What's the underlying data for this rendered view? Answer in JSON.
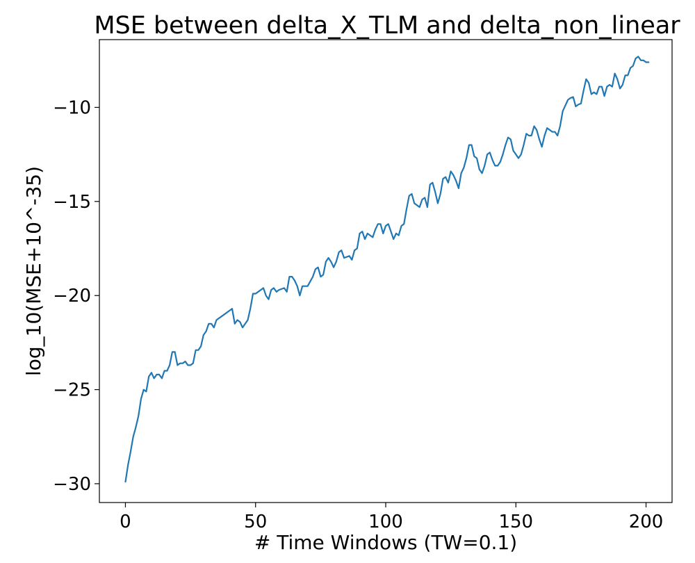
{
  "chart_data": {
    "type": "line",
    "title": "MSE between delta_X_TLM and delta_non_linear",
    "xlabel": "# Time Windows (TW=0.1)",
    "ylabel": "log_10(MSE+10^-35)",
    "xlim": [
      -10,
      210
    ],
    "ylim": [
      -31,
      -6.4
    ],
    "xticks": [
      0,
      50,
      100,
      150,
      200
    ],
    "xtick_labels": [
      "0",
      "50",
      "100",
      "150",
      "200"
    ],
    "yticks": [
      -30,
      -25,
      -20,
      -15,
      -10
    ],
    "ytick_labels": [
      "−30",
      "−25",
      "−20",
      "−15",
      "−10"
    ],
    "grid": false,
    "line_color": "#1f77b4",
    "series": [
      {
        "name": "",
        "keypoints": [
          [
            0,
            -29.9
          ],
          [
            1,
            -29.0
          ],
          [
            2,
            -28.3
          ],
          [
            3,
            -27.5
          ],
          [
            4,
            -27.0
          ],
          [
            5,
            -26.4
          ],
          [
            6,
            -25.5
          ],
          [
            7,
            -25.0
          ],
          [
            8,
            -25.1
          ],
          [
            9,
            -24.3
          ],
          [
            10,
            -24.1
          ],
          [
            11,
            -24.4
          ],
          [
            12,
            -24.2
          ],
          [
            13,
            -24.2
          ],
          [
            14,
            -24.4
          ],
          [
            15,
            -24.0
          ],
          [
            16,
            -24.0
          ],
          [
            17,
            -23.7
          ],
          [
            18,
            -23.0
          ],
          [
            19,
            -23.0
          ],
          [
            20,
            -23.7
          ],
          [
            21,
            -23.6
          ],
          [
            22,
            -23.6
          ],
          [
            23,
            -23.5
          ],
          [
            24,
            -23.7
          ],
          [
            25,
            -23.7
          ],
          [
            26,
            -23.6
          ],
          [
            27,
            -22.9
          ],
          [
            28,
            -22.9
          ],
          [
            29,
            -22.7
          ],
          [
            30,
            -22.1
          ],
          [
            31,
            -21.9
          ],
          [
            32,
            -21.5
          ],
          [
            33,
            -21.5
          ],
          [
            34,
            -21.7
          ],
          [
            35,
            -21.3
          ],
          [
            38,
            -21.0
          ],
          [
            41,
            -20.7
          ],
          [
            42,
            -21.5
          ],
          [
            43,
            -21.3
          ],
          [
            44,
            -21.4
          ],
          [
            45,
            -21.7
          ],
          [
            47,
            -21.3
          ],
          [
            48,
            -20.7
          ],
          [
            49,
            -19.9
          ],
          [
            50,
            -19.9
          ],
          [
            51,
            -19.8
          ],
          [
            53,
            -19.6
          ],
          [
            54,
            -20.0
          ],
          [
            55,
            -20.2
          ],
          [
            56,
            -19.7
          ],
          [
            57,
            -19.6
          ],
          [
            58,
            -19.8
          ],
          [
            59,
            -19.7
          ],
          [
            61,
            -19.6
          ],
          [
            62,
            -19.8
          ],
          [
            63,
            -19.0
          ],
          [
            64,
            -19.0
          ],
          [
            65,
            -19.2
          ],
          [
            66,
            -19.5
          ],
          [
            67,
            -20.0
          ],
          [
            68,
            -19.5
          ],
          [
            70,
            -19.5
          ],
          [
            72,
            -19.0
          ],
          [
            73,
            -18.6
          ],
          [
            74,
            -18.5
          ],
          [
            75,
            -19.0
          ],
          [
            76,
            -18.9
          ],
          [
            77,
            -18.2
          ],
          [
            78,
            -18.0
          ],
          [
            79,
            -18.2
          ],
          [
            80,
            -18.5
          ],
          [
            81,
            -18.2
          ],
          [
            82,
            -17.7
          ],
          [
            83,
            -17.6
          ],
          [
            84,
            -18.0
          ],
          [
            86,
            -17.9
          ],
          [
            87,
            -18.1
          ],
          [
            88,
            -17.6
          ],
          [
            89,
            -17.5
          ],
          [
            90,
            -16.7
          ],
          [
            91,
            -16.6
          ],
          [
            92,
            -17.0
          ],
          [
            93,
            -16.7
          ],
          [
            94,
            -16.8
          ],
          [
            95,
            -16.9
          ],
          [
            96,
            -16.5
          ],
          [
            97,
            -16.2
          ],
          [
            98,
            -16.2
          ],
          [
            99,
            -16.7
          ],
          [
            100,
            -16.3
          ],
          [
            101,
            -16.2
          ],
          [
            102,
            -16.6
          ],
          [
            103,
            -17.0
          ],
          [
            104,
            -16.7
          ],
          [
            105,
            -16.8
          ],
          [
            106,
            -16.3
          ],
          [
            107,
            -16.2
          ],
          [
            108,
            -15.4
          ],
          [
            109,
            -14.7
          ],
          [
            110,
            -14.6
          ],
          [
            111,
            -15.1
          ],
          [
            112,
            -15.2
          ],
          [
            113,
            -15.3
          ],
          [
            114,
            -14.9
          ],
          [
            115,
            -14.8
          ],
          [
            116,
            -15.3
          ],
          [
            117,
            -14.1
          ],
          [
            118,
            -14.0
          ],
          [
            119,
            -14.5
          ],
          [
            120,
            -15.1
          ],
          [
            121,
            -14.6
          ],
          [
            122,
            -13.8
          ],
          [
            123,
            -13.7
          ],
          [
            124,
            -14.0
          ],
          [
            125,
            -13.4
          ],
          [
            126,
            -13.6
          ],
          [
            127,
            -13.9
          ],
          [
            128,
            -14.3
          ],
          [
            129,
            -13.5
          ],
          [
            130,
            -13.2
          ],
          [
            131,
            -12.7
          ],
          [
            132,
            -12.0
          ],
          [
            133,
            -12.0
          ],
          [
            134,
            -12.6
          ],
          [
            135,
            -12.7
          ],
          [
            136,
            -13.3
          ],
          [
            137,
            -13.5
          ],
          [
            138,
            -13.1
          ],
          [
            139,
            -12.5
          ],
          [
            140,
            -12.4
          ],
          [
            141,
            -12.8
          ],
          [
            142,
            -13.1
          ],
          [
            143,
            -13.1
          ],
          [
            144,
            -12.9
          ],
          [
            145,
            -12.5
          ],
          [
            146,
            -12.0
          ],
          [
            147,
            -11.6
          ],
          [
            148,
            -11.7
          ],
          [
            149,
            -12.3
          ],
          [
            150,
            -12.5
          ],
          [
            151,
            -12.7
          ],
          [
            152,
            -12.5
          ],
          [
            153,
            -12.0
          ],
          [
            154,
            -11.4
          ],
          [
            155,
            -11.5
          ],
          [
            156,
            -11.5
          ],
          [
            157,
            -11.0
          ],
          [
            158,
            -11.2
          ],
          [
            159,
            -11.7
          ],
          [
            160,
            -12.1
          ],
          [
            161,
            -11.5
          ],
          [
            162,
            -11.1
          ],
          [
            163,
            -11.2
          ],
          [
            164,
            -11.3
          ],
          [
            165,
            -11.3
          ],
          [
            166,
            -11.5
          ],
          [
            167,
            -11.0
          ],
          [
            168,
            -10.2
          ],
          [
            169,
            -9.9
          ],
          [
            170,
            -9.6
          ],
          [
            171,
            -9.5
          ],
          [
            172,
            -9.45
          ],
          [
            173,
            -9.95
          ],
          [
            174,
            -9.85
          ],
          [
            175,
            -9.8
          ],
          [
            176,
            -9.1
          ],
          [
            177,
            -8.5
          ],
          [
            178,
            -8.7
          ],
          [
            179,
            -9.3
          ],
          [
            180,
            -9.2
          ],
          [
            181,
            -9.3
          ],
          [
            182,
            -8.9
          ],
          [
            183,
            -8.9
          ],
          [
            184,
            -9.4
          ],
          [
            185,
            -8.9
          ],
          [
            186,
            -8.8
          ],
          [
            187,
            -8.9
          ],
          [
            188,
            -8.2
          ],
          [
            189,
            -8.5
          ],
          [
            190,
            -9.0
          ],
          [
            191,
            -8.8
          ],
          [
            192,
            -8.3
          ],
          [
            193,
            -8.3
          ],
          [
            194,
            -7.9
          ],
          [
            195,
            -7.8
          ],
          [
            196,
            -7.4
          ],
          [
            197,
            -7.3
          ],
          [
            198,
            -7.5
          ],
          [
            199,
            -7.5
          ],
          [
            200,
            -7.6
          ],
          [
            201,
            -7.6
          ]
        ]
      }
    ]
  }
}
